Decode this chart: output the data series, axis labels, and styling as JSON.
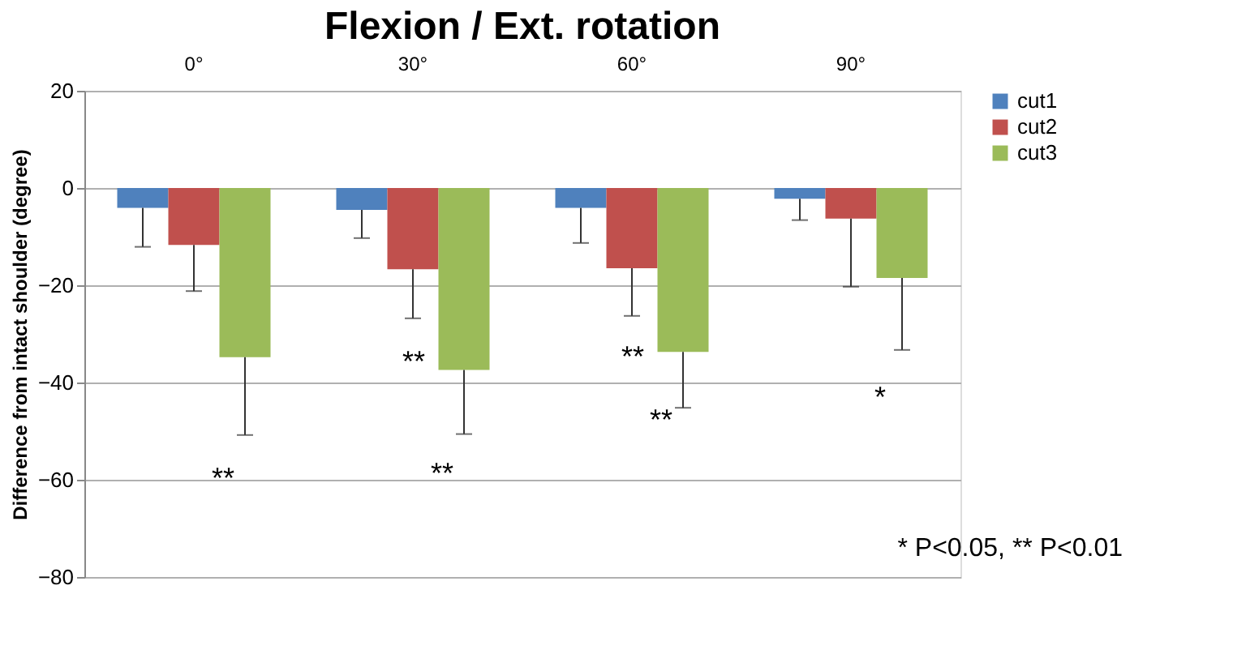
{
  "chart_data": {
    "type": "bar",
    "title": "Flexion / Ext. rotation",
    "ylabel": "Difference from intact shoulder (degree)",
    "categories": [
      "0°",
      "30°",
      "60°",
      "90°"
    ],
    "series": [
      {
        "name": "cut1",
        "color": "#4f81bd",
        "values": [
          -4.1,
          -4.5,
          -4.1,
          -2.2
        ],
        "errors": [
          [
            -12.1,
            -4.1
          ],
          [
            -10.3,
            -4.5
          ],
          [
            -11.3,
            -4.1
          ],
          [
            -6.6,
            -2.2
          ]
        ]
      },
      {
        "name": "cut2",
        "color": "#c0504d",
        "values": [
          -11.7,
          -16.7,
          -16.5,
          -6.3
        ],
        "errors": [
          [
            -21.2,
            -11.7
          ],
          [
            -26.8,
            -16.7
          ],
          [
            -26.3,
            -16.5
          ],
          [
            -20.3,
            -6.3
          ]
        ]
      },
      {
        "name": "cut3",
        "color": "#9bbb59",
        "values": [
          -34.8,
          -37.4,
          -33.7,
          -18.5
        ],
        "errors": [
          [
            -50.8,
            -34.8
          ],
          [
            -50.6,
            -37.4
          ],
          [
            -45.2,
            -33.7
          ],
          [
            -33.3,
            -18.5
          ]
        ]
      }
    ],
    "ylim": [
      -80,
      20
    ],
    "yticks": [
      -80,
      -60,
      -40,
      -20,
      0,
      20
    ],
    "grid": "y",
    "legend": "right",
    "annotations": [
      "**",
      "**",
      "**",
      "**",
      "**",
      "*",
      "* P<0.05, ** P<0.01"
    ]
  }
}
